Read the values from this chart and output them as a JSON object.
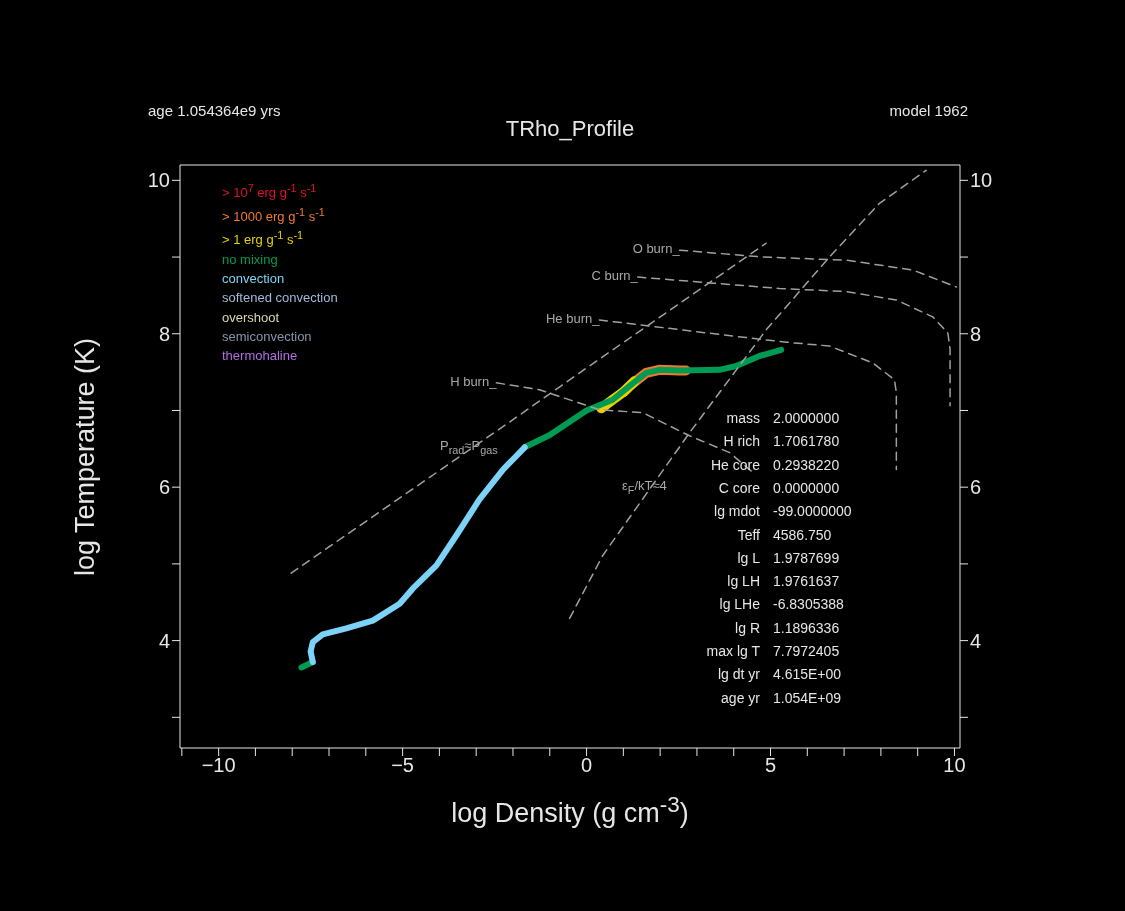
{
  "chart_data": {
    "type": "line",
    "title": "TRho_Profile",
    "xlabel": "log Density (g cm$^{-3}$)",
    "ylabel": "log Temperature (K)",
    "xlim": [
      -11.05,
      10.15
    ],
    "xticks": [
      {
        "value": -11,
        "label": null
      },
      -10,
      {
        "value": -9,
        "label": null
      },
      {
        "value": -8,
        "label": null
      },
      {
        "value": -7,
        "label": null
      },
      {
        "value": -6,
        "label": null
      },
      -5,
      {
        "value": -4,
        "label": null
      },
      {
        "value": -3,
        "label": null
      },
      {
        "value": -2,
        "label": null
      },
      {
        "value": -1,
        "label": null
      },
      0,
      {
        "value": 1,
        "label": null
      },
      {
        "value": 2,
        "label": null
      },
      {
        "value": 3,
        "label": null
      },
      {
        "value": 4,
        "label": null
      },
      5,
      {
        "value": 6,
        "label": null
      },
      {
        "value": 7,
        "label": null
      },
      {
        "value": 8,
        "label": null
      },
      {
        "value": 9,
        "label": null
      },
      10
    ],
    "ylim": [
      2.6,
      10.2
    ],
    "yticks": [
      {
        "value": 3,
        "label": null
      },
      4,
      {
        "value": 5,
        "label": null
      },
      6,
      {
        "value": 7,
        "label": null
      },
      8,
      {
        "value": 9,
        "label": null
      },
      10
    ],
    "y2lim": [
      2.6,
      10.2
    ],
    "y2ticks": [
      {
        "value": 3,
        "label": null
      },
      4,
      {
        "value": 5,
        "label": null
      },
      6,
      {
        "value": 7,
        "label": null
      },
      8,
      {
        "value": 9,
        "label": null
      },
      10
    ],
    "legend": "top left",
    "series": [
      {
        "name": "> 10$^{7}$ erg g$^{-1}$ s$^{-1}$",
        "color": "#e0102f"
      },
      {
        "name": "> 1000 erg g$^{-1}$ s$^{-1}$",
        "color": "#f07830",
        "x": [
          1.0,
          1.2,
          1.62,
          1.98,
          2.53,
          2.7
        ],
        "values": [
          7.24,
          7.33,
          7.49,
          7.53,
          7.52,
          7.52
        ]
      },
      {
        "name": "> 1 erg g$^{-1}$ s$^{-1}$",
        "color": "#e8d000",
        "x": [
          0.4,
          0.71,
          1.0,
          1.3
        ],
        "values": [
          7.03,
          7.14,
          7.24,
          7.38
        ]
      },
      {
        "name": "no mixing",
        "color": "#009b52",
        "x": [
          -7.75,
          -7.44,
          -5,
          -1.68,
          -1.0,
          0,
          0.71,
          1.2,
          1.62,
          1.98,
          2.53,
          3.61,
          4.07,
          4.7,
          5.29
        ],
        "values": [
          3.65,
          3.72,
          null,
          6.52,
          6.68,
          7.0,
          7.14,
          7.33,
          7.49,
          7.53,
          7.52,
          7.53,
          7.58,
          7.71,
          7.79
        ]
      },
      {
        "name": "convection",
        "color": "#7dd3f7",
        "x": [
          -7.44,
          -7.5,
          -7.44,
          -7.17,
          -6.53,
          -5.81,
          -5.08,
          -4.72,
          -4.08,
          -3.54,
          -2.91,
          -2.27,
          -1.68
        ],
        "values": [
          3.72,
          3.86,
          3.98,
          4.08,
          4.16,
          4.26,
          4.48,
          4.68,
          4.98,
          5.37,
          5.84,
          6.23,
          6.52
        ]
      },
      {
        "name": "softened convection",
        "color": "#a4b8dc"
      },
      {
        "name": "overshoot",
        "color": "#dcd6b4"
      },
      {
        "name": "semiconvection",
        "color": "#8494ac"
      },
      {
        "name": "thermohaline",
        "color": "#b070e0"
      },
      {
        "color": "#a0a0a0",
        "line_style": "dashed",
        "x": [
          -2.45,
          -1.28,
          0.35,
          1.53,
          2.8,
          3.89,
          4.5
        ],
        "values": [
          7.36,
          7.27,
          7.01,
          6.97,
          6.67,
          6.45,
          6.2
        ]
      },
      {
        "color": "#a0a0a0",
        "line_style": "dashed",
        "x": [
          0.35,
          2.07,
          4.34,
          5.43,
          6.6,
          7.78,
          8.37,
          8.42,
          8.42
        ],
        "values": [
          8.18,
          8.08,
          7.95,
          7.89,
          7.84,
          7.62,
          7.4,
          7.23,
          6.23
        ]
      },
      {
        "color": "#a0a0a0",
        "line_style": "dashed",
        "x": [
          1.39,
          3.43,
          5.24,
          7.06,
          8.42,
          9.41,
          9.82,
          9.88,
          9.88
        ],
        "values": [
          8.74,
          8.66,
          8.59,
          8.55,
          8.44,
          8.22,
          8.01,
          7.8,
          7.06
        ]
      },
      {
        "color": "#a0a0a0",
        "line_style": "dashed",
        "x": [
          2.53,
          4.79,
          7.06,
          8.87,
          10.05
        ],
        "values": [
          9.09,
          9.0,
          8.96,
          8.83,
          8.61
        ]
      },
      {
        "color": "#a0a0a0",
        "line_style": "dashed",
        "x": [
          -8.03,
          -2.0,
          -0.19,
          4.88
        ],
        "values": [
          4.88,
          6.88,
          7.49,
          9.18
        ]
      },
      {
        "color": "#a0a0a0",
        "line_style": "dashed",
        "x": [
          -0.46,
          0.44,
          2.8,
          4.88,
          6.6,
          7.96,
          9.23
        ],
        "values": [
          4.29,
          5.11,
          6.71,
          8.05,
          9.0,
          9.7,
          10.13
        ]
      }
    ],
    "annotations": [
      "age 1.054364e9 yrs",
      "model 1962",
      {
        "text": "H burn_",
        "x": -2.45,
        "y": 7.36
      },
      {
        "text": "He burn_",
        "x": 0.35,
        "y": 8.18
      },
      {
        "text": "C burn_",
        "x": 1.39,
        "y": 8.74
      },
      {
        "text": "O burn_",
        "x": 2.53,
        "y": 9.09
      },
      "P$_{rad}$≈P$_{gas}$",
      "ε$_{F}$/kT≈4",
      "mass 2.0000000",
      "H rich 1.7061780",
      "He core 0.2938220",
      "C core 0.0000000",
      "lg mdot -99.0000000",
      "Teff 4586.750",
      "lg L 1.9787699",
      "lg LH 1.9761637",
      "lg LHe -6.8305388",
      "lg R 1.1896336",
      "max lg T 7.7972405",
      "lg dt yr 4.615E+00",
      "age yr 1.054E+09"
    ]
  }
}
